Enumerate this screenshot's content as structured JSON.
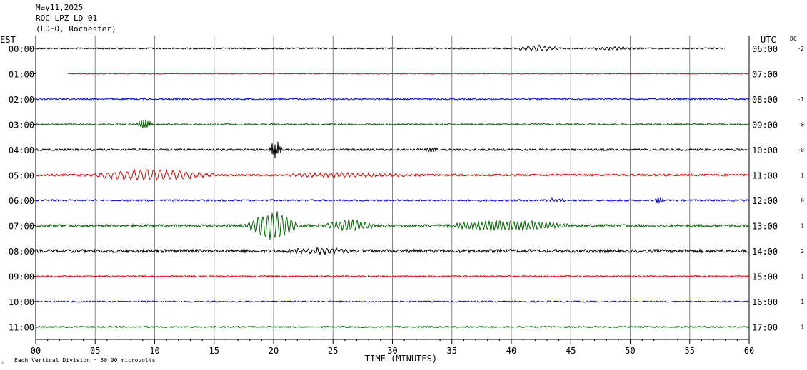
{
  "header": {
    "line1": "May11,2025",
    "line2": "ROC LPZ LD 01",
    "line3": "(LDEO, Rochester)"
  },
  "left_tz": "EST",
  "right_tz": "UTC",
  "dc_label": "DC",
  "footer_note": "Each Vertical Division =   50.00 microvolts",
  "chart_data": {
    "type": "line",
    "title": "ROC LPZ LD 01",
    "xlabel": "TIME (MINUTES)",
    "ylabel": "",
    "xlim": [
      0,
      60
    ],
    "x_ticks": [
      "00",
      "05",
      "10",
      "15",
      "20",
      "25",
      "30",
      "35",
      "40",
      "45",
      "50",
      "55",
      "60"
    ],
    "grid": "vertical every 5 minutes",
    "trace_colors": [
      "#000000",
      "#dd0000",
      "#0000cc",
      "#006400"
    ],
    "traces": [
      {
        "local": "00:00",
        "utc": "06:00",
        "dc": "-2",
        "start": 0,
        "end": 58,
        "amp": 1.0,
        "events": [
          {
            "t0": 40.2,
            "t1": 46,
            "amp": 4,
            "per": 0.45
          },
          {
            "t0": 46,
            "t1": 53,
            "amp": 2,
            "per": 0.35
          }
        ]
      },
      {
        "local": "01:00",
        "utc": "07:00",
        "dc": "",
        "start": 2.7,
        "end": 60,
        "amp": 0.6,
        "events": []
      },
      {
        "local": "02:00",
        "utc": "08:00",
        "dc": "-1",
        "start": 0,
        "end": 60,
        "amp": 1.0,
        "events": []
      },
      {
        "local": "03:00",
        "utc": "09:00",
        "dc": "-0",
        "start": 0,
        "end": 60,
        "amp": 1.1,
        "events": [
          {
            "t0": 8.4,
            "t1": 10.5,
            "amp": 8,
            "per": 0.18
          }
        ]
      },
      {
        "local": "04:00",
        "utc": "10:00",
        "dc": "-0",
        "start": 0,
        "end": 60,
        "amp": 1.4,
        "events": [
          {
            "t0": 19.6,
            "t1": 21.3,
            "amp": 13,
            "per": 0.16
          },
          {
            "t0": 32,
            "t1": 35,
            "amp": 3,
            "per": 0.2
          }
        ]
      },
      {
        "local": "05:00",
        "utc": "11:00",
        "dc": "1",
        "start": 0,
        "end": 60,
        "amp": 1.5,
        "events": [
          {
            "t0": 4,
            "t1": 20,
            "amp": 8,
            "per": 0.55
          },
          {
            "t0": 20,
            "t1": 38,
            "amp": 3,
            "per": 0.45
          }
        ]
      },
      {
        "local": "06:00",
        "utc": "12:00",
        "dc": "0",
        "start": 0,
        "end": 60,
        "amp": 1.2,
        "events": [
          {
            "t0": 52,
            "t1": 53.5,
            "amp": 5,
            "per": 0.2
          },
          {
            "t0": 42,
            "t1": 47,
            "amp": 2,
            "per": 0.3
          }
        ]
      },
      {
        "local": "07:00",
        "utc": "13:00",
        "dc": "1",
        "start": 0,
        "end": 60,
        "amp": 1.8,
        "events": [
          {
            "t0": 17.6,
            "t1": 24.3,
            "amp": 20,
            "per": 0.4
          },
          {
            "t0": 24.3,
            "t1": 30.5,
            "amp": 8,
            "per": 0.35
          },
          {
            "t0": 34,
            "t1": 50,
            "amp": 7,
            "per": 0.3
          }
        ]
      },
      {
        "local": "08:00",
        "utc": "14:00",
        "dc": "2",
        "start": 0,
        "end": 60,
        "amp": 2.2,
        "events": [
          {
            "t0": 21,
            "t1": 29,
            "amp": 4,
            "per": 0.4
          }
        ]
      },
      {
        "local": "09:00",
        "utc": "15:00",
        "dc": "1",
        "start": 0,
        "end": 60,
        "amp": 1.0,
        "events": []
      },
      {
        "local": "10:00",
        "utc": "16:00",
        "dc": "1",
        "start": 0,
        "end": 60,
        "amp": 1.0,
        "events": []
      },
      {
        "local": "11:00",
        "utc": "17:00",
        "dc": "1",
        "start": 0,
        "end": 60,
        "amp": 1.0,
        "events": []
      }
    ]
  }
}
